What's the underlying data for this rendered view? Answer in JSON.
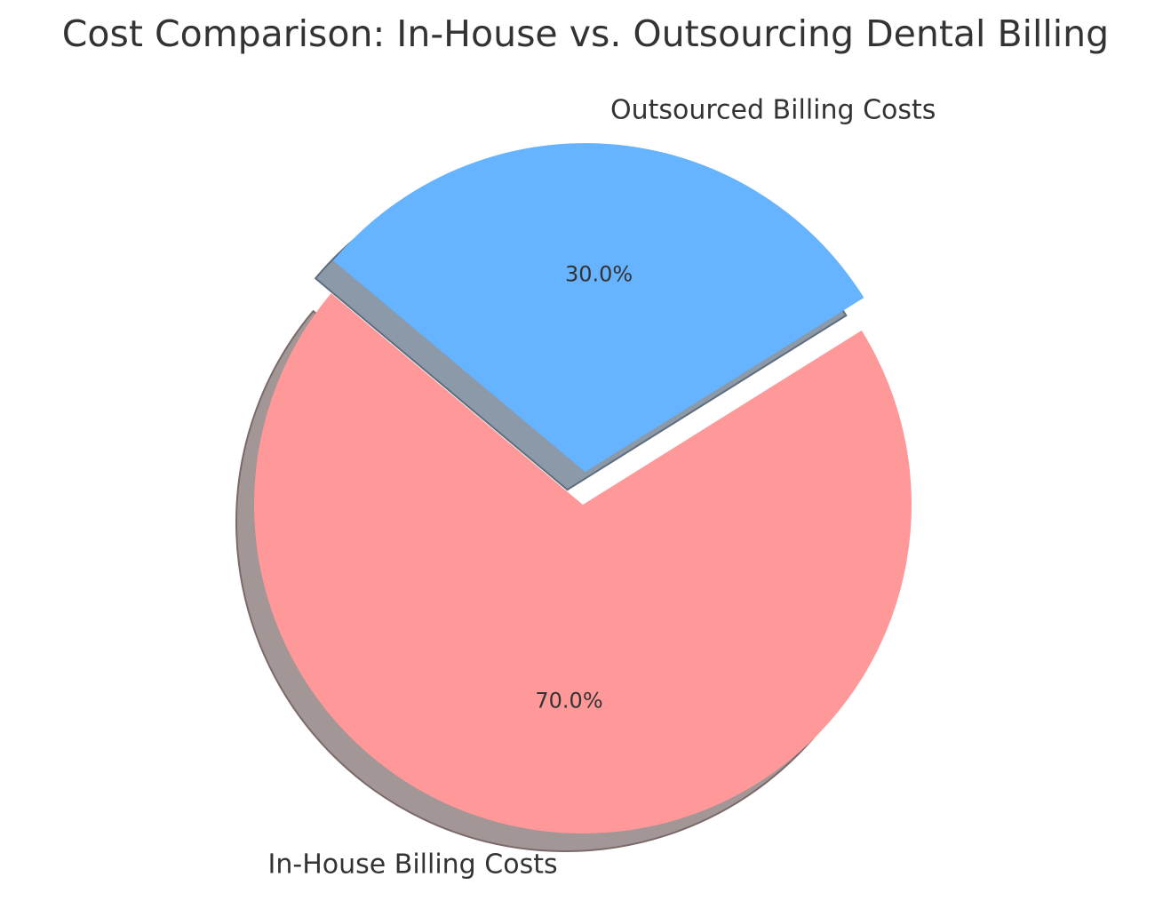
{
  "chart_data": {
    "type": "pie",
    "title": "Cost Comparison: In-House vs. Outsourcing Dental Billing",
    "categories": [
      "In-House Billing Costs",
      "Outsourced Billing Costs"
    ],
    "values": [
      70,
      30
    ],
    "percent_labels": [
      "70.0%",
      "30.0%"
    ],
    "colors": [
      "#ff9999",
      "#66b3ff"
    ],
    "shadow": true,
    "exploded": [
      "Outsourced Billing Costs"
    ],
    "start_angle_deg": 140
  }
}
